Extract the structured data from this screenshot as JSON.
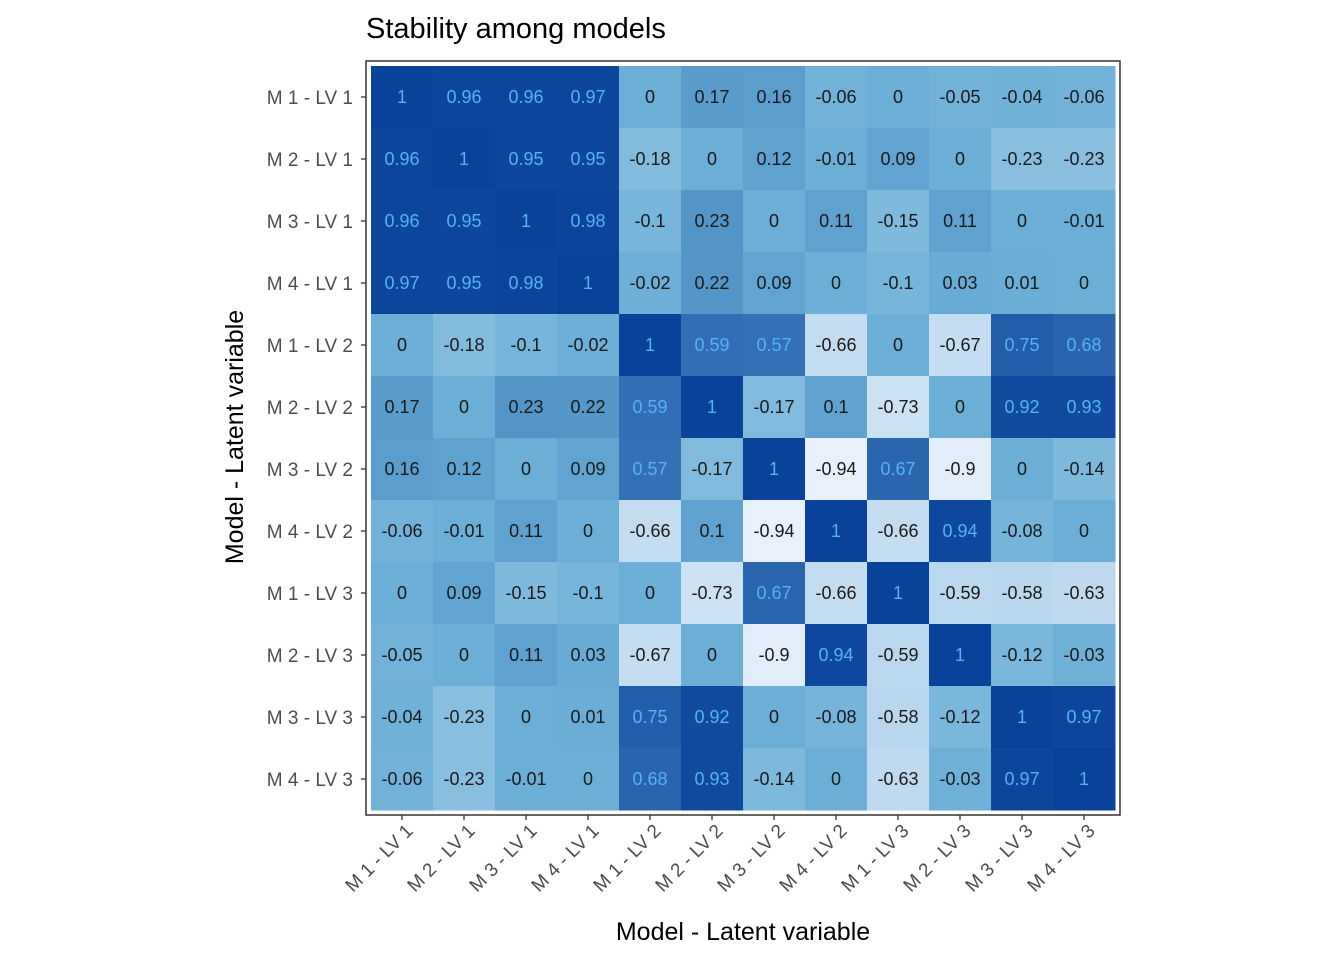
{
  "chart_data": {
    "type": "heatmap",
    "title": "Stability among models",
    "xlabel": "Model - Latent variable",
    "ylabel": "Model - Latent variable",
    "categories": [
      "M 1 - LV 1",
      "M 2 - LV 1",
      "M 3 - LV 1",
      "M 4 - LV 1",
      "M 1 - LV 2",
      "M 2 - LV 2",
      "M 3 - LV 2",
      "M 4 - LV 2",
      "M 1 - LV 3",
      "M 2 - LV 3",
      "M 3 - LV 3",
      "M 4 - LV 3"
    ],
    "values": [
      [
        1,
        0.96,
        0.96,
        0.97,
        0,
        0.17,
        0.16,
        -0.06,
        0,
        -0.05,
        -0.04,
        -0.06
      ],
      [
        0.96,
        1,
        0.95,
        0.95,
        -0.18,
        0,
        0.12,
        -0.01,
        0.09,
        0,
        -0.23,
        -0.23
      ],
      [
        0.96,
        0.95,
        1,
        0.98,
        -0.1,
        0.23,
        0,
        0.11,
        -0.15,
        0.11,
        0,
        -0.01
      ],
      [
        0.97,
        0.95,
        0.98,
        1,
        -0.02,
        0.22,
        0.09,
        0,
        -0.1,
        0.03,
        0.01,
        0
      ],
      [
        0,
        -0.18,
        -0.1,
        -0.02,
        1,
        0.59,
        0.57,
        -0.66,
        0,
        -0.67,
        0.75,
        0.68
      ],
      [
        0.17,
        0,
        0.23,
        0.22,
        0.59,
        1,
        -0.17,
        0.1,
        -0.73,
        0,
        0.92,
        0.93
      ],
      [
        0.16,
        0.12,
        0,
        0.09,
        0.57,
        -0.17,
        1,
        -0.94,
        0.67,
        -0.9,
        0,
        -0.14
      ],
      [
        -0.06,
        -0.01,
        0.11,
        0,
        -0.66,
        0.1,
        -0.94,
        1,
        -0.66,
        0.94,
        -0.08,
        0
      ],
      [
        0,
        0.09,
        -0.15,
        -0.1,
        0,
        -0.73,
        0.67,
        -0.66,
        1,
        -0.59,
        -0.58,
        -0.63
      ],
      [
        -0.05,
        0,
        0.11,
        0.03,
        -0.67,
        0,
        -0.9,
        0.94,
        -0.59,
        1,
        -0.12,
        -0.03
      ],
      [
        -0.04,
        -0.23,
        0,
        0.01,
        0.75,
        0.92,
        0,
        -0.08,
        -0.58,
        -0.12,
        1,
        0.97
      ],
      [
        -0.06,
        -0.23,
        -0.01,
        0,
        0.68,
        0.93,
        -0.14,
        0,
        -0.63,
        -0.03,
        0.97,
        1
      ]
    ],
    "color_scale": {
      "low": "#f0f4fd",
      "mid": "#6baed6",
      "high": "#08429a",
      "domain": [
        -1,
        0,
        1
      ]
    },
    "label_colors": {
      "light_cells": "#1a1a1a",
      "dark_cells": "#56b1f7"
    },
    "grid": true,
    "legend": "none"
  }
}
